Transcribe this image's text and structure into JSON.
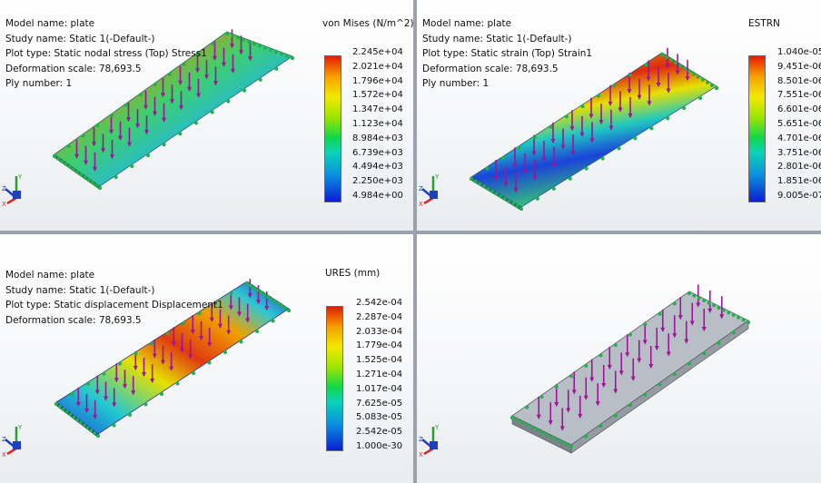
{
  "panels": [
    {
      "id": "stress",
      "lines": [
        "Model name: plate",
        "Study name: Static 1(-Default-)",
        "Plot type: Static nodal stress (Top) Stress1",
        "Deformation scale: 78,693.5",
        "Ply number: 1"
      ],
      "legend_title": "von Mises (N/m^2)",
      "legend_values": [
        "2.245e+04",
        "2.021e+04",
        "1.796e+04",
        "1.572e+04",
        "1.347e+04",
        "1.123e+04",
        "8.984e+03",
        "6.739e+03",
        "4.494e+03",
        "2.250e+03",
        "4.984e+00"
      ]
    },
    {
      "id": "strain",
      "lines": [
        "Model name: plate",
        "Study name: Static 1(-Default-)",
        "Plot type: Static strain (Top) Strain1",
        "Deformation scale: 78,693.5",
        "Ply number: 1"
      ],
      "legend_title": "ESTRN",
      "legend_values": [
        "1.040e-05",
        "9.451e-06",
        "8.501e-06",
        "7.551e-06",
        "6.601e-06",
        "5.651e-06",
        "4.701e-06",
        "3.751e-06",
        "2.801e-06",
        "1.851e-06",
        "9.005e-07"
      ]
    },
    {
      "id": "displacement",
      "lines": [
        "Model name: plate",
        "Study name: Static 1(-Default-)",
        "Plot type: Static displacement Displacement1",
        "Deformation scale: 78,693.5"
      ],
      "legend_title": "URES (mm)",
      "legend_values": [
        "2.542e-04",
        "2.287e-04",
        "2.033e-04",
        "1.779e-04",
        "1.525e-04",
        "1.271e-04",
        "1.017e-04",
        "7.625e-05",
        "5.083e-05",
        "2.542e-05",
        "1.000e-30"
      ]
    },
    {
      "id": "model",
      "lines": [],
      "legend_title": "",
      "legend_values": []
    }
  ],
  "triad_labels": {
    "x": "X",
    "y": "Y",
    "z": "Z"
  },
  "colors": {
    "load_arrow": "#a0139a",
    "fixture": "#22b14c",
    "plate_gray": "#b8bec6"
  }
}
